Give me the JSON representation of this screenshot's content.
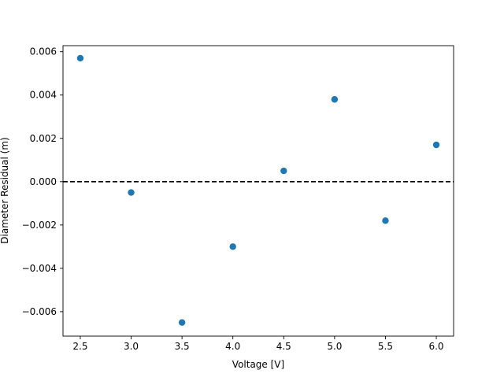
{
  "chart_data": {
    "type": "scatter",
    "title": "",
    "xlabel": "Voltage [V]",
    "ylabel": "Diameter Residual (m)",
    "xlim": [
      2.33,
      6.17
    ],
    "ylim": [
      -0.00713,
      0.00628
    ],
    "xticks": [
      2.5,
      3.0,
      3.5,
      4.0,
      4.5,
      5.0,
      5.5,
      6.0
    ],
    "xtick_labels": [
      "2.5",
      "3.0",
      "3.5",
      "4.0",
      "4.5",
      "5.0",
      "5.5",
      "6.0"
    ],
    "yticks": [
      -0.006,
      -0.004,
      -0.002,
      0.0,
      0.002,
      0.004,
      0.006
    ],
    "ytick_labels": [
      "−0.006",
      "−0.004",
      "−0.002",
      "0.000",
      "0.002",
      "0.004",
      "0.006"
    ],
    "grid": false,
    "reference_line": {
      "y": 0.0,
      "style": "dashed",
      "color": "#000000"
    },
    "series": [
      {
        "color": "#1f77b4",
        "x": [
          2.5,
          3.0,
          3.5,
          4.0,
          4.5,
          5.0,
          5.5,
          6.0
        ],
        "y": [
          0.0057,
          -0.0005,
          -0.0065,
          -0.003,
          0.0005,
          0.0038,
          -0.0018,
          0.0017
        ]
      }
    ]
  }
}
